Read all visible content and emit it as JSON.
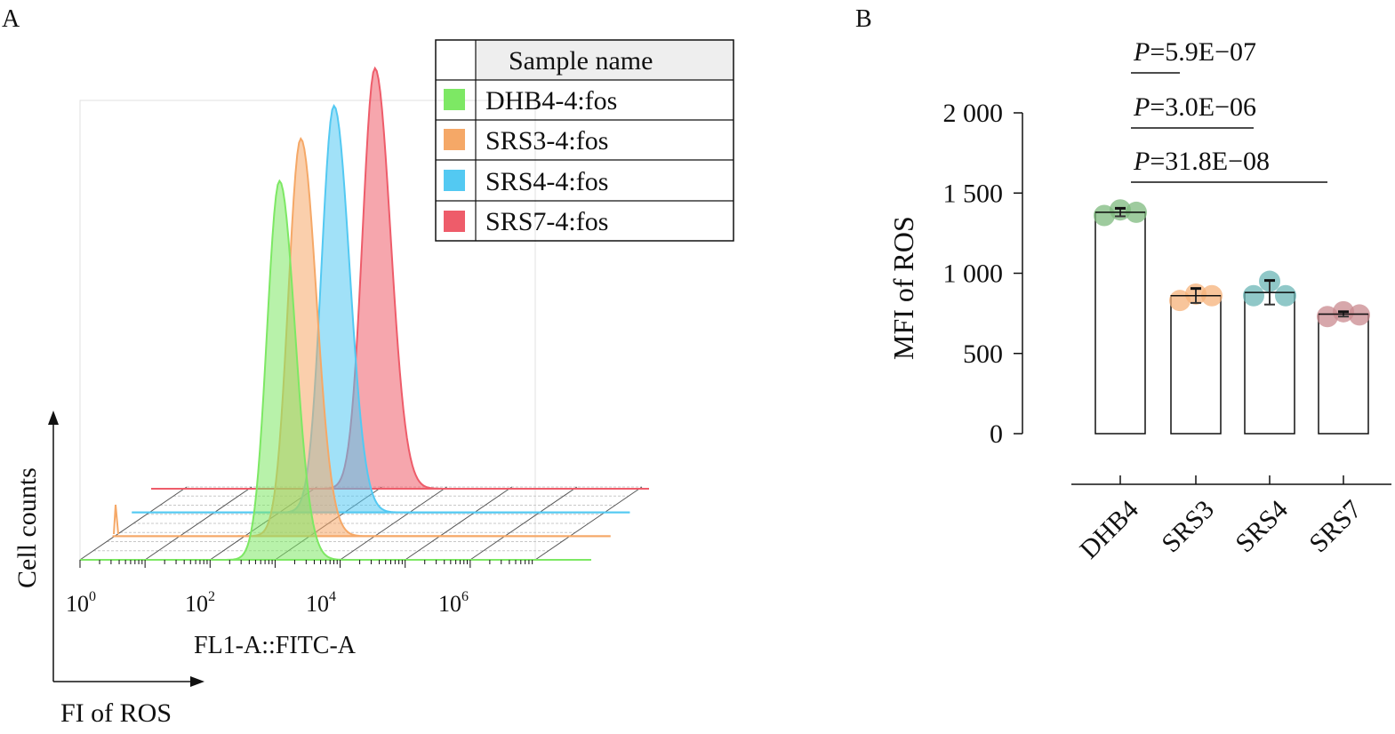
{
  "chart_data": [
    {
      "panel": "A",
      "type": "area",
      "x_scale": "log",
      "xlim": [
        1,
        10000000
      ],
      "x_ticks": [
        {
          "label": "10",
          "sup": "0"
        },
        {
          "label": "10",
          "sup": "2"
        },
        {
          "label": "10",
          "sup": "4"
        },
        {
          "label": "10",
          "sup": "6"
        }
      ],
      "axis_label_inner": "FL1-A::FITC-A",
      "xlabel": "FI of ROS",
      "ylabel": "Cell counts",
      "legend_title": "Sample name",
      "legend_position": "top-right",
      "series": [
        {
          "name": "DHB4-4:fos",
          "color": "#7de864",
          "peak_x": 1600,
          "peak_height": 0.82
        },
        {
          "name": "SRS3-4:fos",
          "color": "#f5a867",
          "peak_x": 3400,
          "peak_height": 0.86
        },
        {
          "name": "SRS4-4:fos",
          "color": "#53c9f2",
          "peak_x": 11000,
          "peak_height": 0.88
        },
        {
          "name": "SRS7-4:fos",
          "color": "#ee5c6a",
          "peak_x": 47000,
          "peak_height": 0.91
        }
      ]
    },
    {
      "panel": "B",
      "type": "bar",
      "categories": [
        "DHB4",
        "SRS3",
        "SRS4",
        "SRS7"
      ],
      "values": [
        1380,
        860,
        880,
        745
      ],
      "errors": [
        25,
        45,
        75,
        15
      ],
      "points": [
        [
          1360,
          1395,
          1380
        ],
        [
          830,
          870,
          860
        ],
        [
          860,
          950,
          860
        ],
        [
          730,
          760,
          740
        ]
      ],
      "point_colors": [
        "#7dba7d",
        "#f5b27a",
        "#6bb5b5",
        "#c98a8f"
      ],
      "ylabel": "MFI of ROS",
      "ylim": [
        0,
        2000
      ],
      "y_ticks": [
        {
          "value": 0,
          "label": "0"
        },
        {
          "value": 500,
          "label": "500"
        },
        {
          "value": 1000,
          "label": "1 000"
        },
        {
          "value": 1500,
          "label": "1 500"
        },
        {
          "value": 2000,
          "label": "2 000"
        }
      ],
      "significance": [
        {
          "italic": "P",
          "text": "=5.9E−07",
          "from": 0,
          "to": 1
        },
        {
          "italic": "P",
          "text": "=3.0E−06",
          "from": 0,
          "to": 2
        },
        {
          "italic": "P",
          "text": "=31.8E−08",
          "from": 0,
          "to": 3
        }
      ]
    }
  ],
  "panel_labels": {
    "a": "A",
    "b": "B"
  }
}
